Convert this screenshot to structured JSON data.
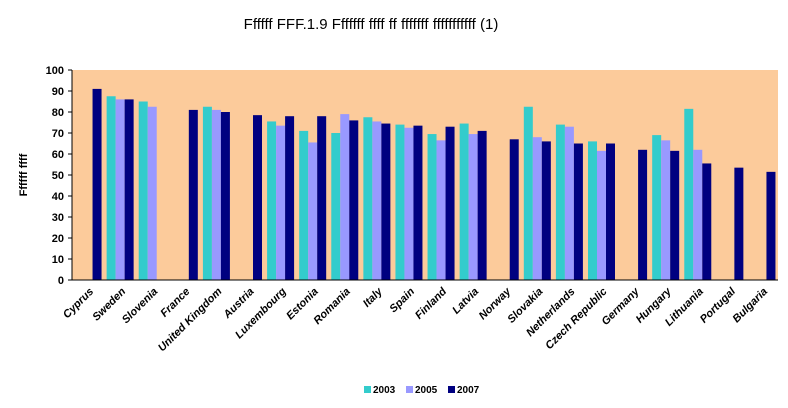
{
  "chart_data": {
    "type": "bar",
    "title": "Ffffff FFF.1.9 Fffffff ffff ff fffffff fffffffffff (1)",
    "xlabel": "",
    "ylabel": "Ffffff ffff",
    "ylim": [
      0,
      100
    ],
    "yticks": [
      0,
      10,
      20,
      30,
      40,
      50,
      60,
      70,
      80,
      90,
      100
    ],
    "grid": false,
    "legend_position": "bottom",
    "plot_background": "#FCCB9B",
    "categories": [
      "Cyprus",
      "Sweden",
      "Slovenia",
      "France",
      "United Kingdom",
      "Austria",
      "Luxembourg",
      "Estonia",
      "Romania",
      "Italy",
      "Spain",
      "Finland",
      "Latvia",
      "Norway",
      "Slovakia",
      "Netherlands",
      "Czech Republic",
      "Germany",
      "Hungary",
      "Lithuania",
      "Portugal",
      "Bulgaria"
    ],
    "series": [
      {
        "name": "2003",
        "color": "#33CCCC",
        "values": [
          null,
          87.5,
          85,
          null,
          82.5,
          null,
          75.5,
          71,
          70,
          77.5,
          74,
          69.5,
          74.5,
          null,
          82.5,
          74,
          66,
          null,
          69,
          81.5,
          null,
          null
        ]
      },
      {
        "name": "2005",
        "color": "#9999FF",
        "values": [
          null,
          86,
          82.5,
          null,
          81,
          null,
          73.5,
          65.5,
          79,
          75.5,
          72.5,
          66.5,
          69.5,
          null,
          68,
          73,
          61.5,
          null,
          66.5,
          62,
          null,
          null
        ]
      },
      {
        "name": "2007",
        "color": "#000080",
        "values": [
          91,
          86,
          null,
          81,
          80,
          78.5,
          78,
          78,
          76,
          74.5,
          73.5,
          73,
          71,
          67,
          66,
          65,
          65,
          62,
          61.5,
          55.5,
          53.5,
          51.5
        ]
      }
    ]
  }
}
